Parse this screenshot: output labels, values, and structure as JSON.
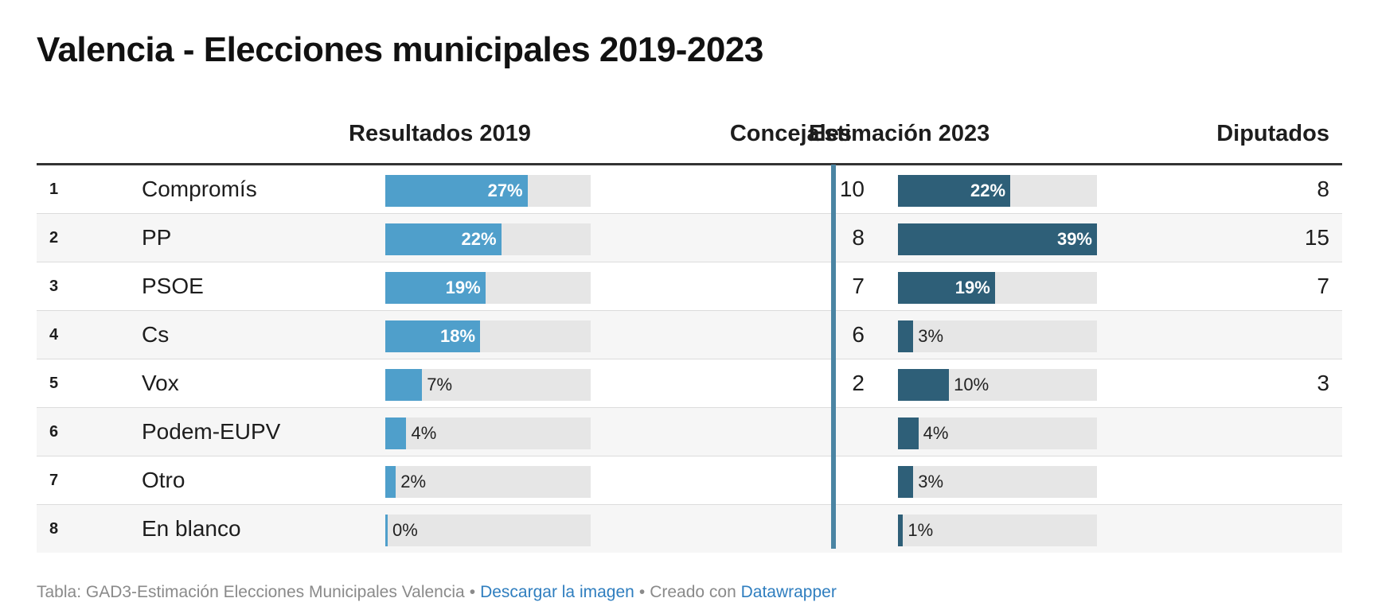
{
  "title": "Valencia - Elecciones municipales 2019-2023",
  "columns": {
    "results2019": "Resultados 2019",
    "concejales": "Concejales",
    "estimate2023": "Estimación 2023",
    "diputados": "Diputados"
  },
  "colors": {
    "bar2019": "#4f9fcb",
    "bar2023": "#2e5f78",
    "track": "#e6e6e6",
    "divider": "#4a84a3"
  },
  "chart_data": {
    "type": "table",
    "value_range": [
      0,
      39
    ],
    "rows": [
      {
        "rank": "1",
        "party": "Compromís",
        "pct2019": 27,
        "label2019": "27%",
        "concejales": "10",
        "pct2023": 22,
        "label2023": "22%",
        "diputados": "8"
      },
      {
        "rank": "2",
        "party": "PP",
        "pct2019": 22,
        "label2019": "22%",
        "concejales": "8",
        "pct2023": 39,
        "label2023": "39%",
        "diputados": "15"
      },
      {
        "rank": "3",
        "party": "PSOE",
        "pct2019": 19,
        "label2019": "19%",
        "concejales": "7",
        "pct2023": 19,
        "label2023": "19%",
        "diputados": "7"
      },
      {
        "rank": "4",
        "party": "Cs",
        "pct2019": 18,
        "label2019": "18%",
        "concejales": "6",
        "pct2023": 3,
        "label2023": "3%",
        "diputados": ""
      },
      {
        "rank": "5",
        "party": "Vox",
        "pct2019": 7,
        "label2019": "7%",
        "concejales": "2",
        "pct2023": 10,
        "label2023": "10%",
        "diputados": "3"
      },
      {
        "rank": "6",
        "party": "Podem-EUPV",
        "pct2019": 4,
        "label2019": "4%",
        "concejales": "",
        "pct2023": 4,
        "label2023": "4%",
        "diputados": ""
      },
      {
        "rank": "7",
        "party": "Otro",
        "pct2019": 2,
        "label2019": "2%",
        "concejales": "",
        "pct2023": 3,
        "label2023": "3%",
        "diputados": ""
      },
      {
        "rank": "8",
        "party": "En blanco",
        "pct2019": 0,
        "label2019": "0%",
        "concejales": "",
        "pct2023": 1,
        "label2023": "1%",
        "diputados": ""
      }
    ]
  },
  "footer": {
    "source": "Tabla: GAD3-Estimación Elecciones Municipales Valencia",
    "separator": "•",
    "download_link": "Descargar la imagen",
    "created_with": "Creado con",
    "datawrapper_link": "Datawrapper"
  }
}
